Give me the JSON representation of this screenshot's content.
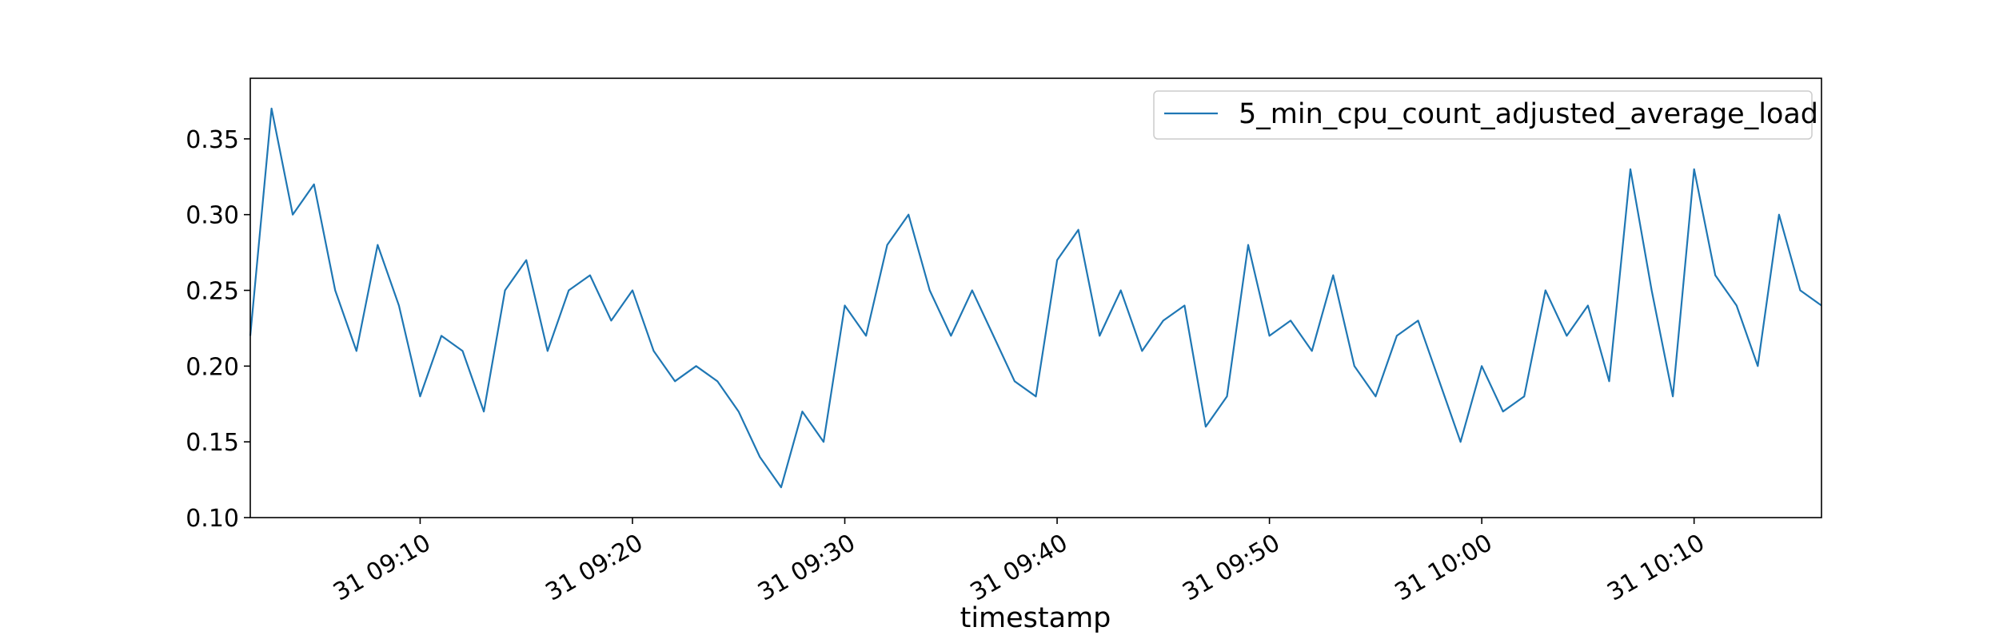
{
  "chart_data": {
    "type": "line",
    "title": "",
    "xlabel": "timestamp",
    "ylabel": "",
    "grid": false,
    "legend_position": "top-right",
    "series_color": "#1f77b4",
    "xlim": [
      "31 09:02",
      "31 10:16"
    ],
    "ylim": [
      0.1,
      0.39
    ],
    "yticks": [
      0.1,
      0.15,
      0.2,
      0.25,
      0.3,
      0.35
    ],
    "ytick_labels": [
      "0.10",
      "0.15",
      "0.20",
      "0.25",
      "0.30",
      "0.35"
    ],
    "xticks": [
      "31 09:10",
      "31 09:20",
      "31 09:30",
      "31 09:40",
      "31 09:50",
      "31 10:00",
      "31 10:10"
    ],
    "xtick_labels": [
      "31 09:10",
      "31 09:20",
      "31 09:30",
      "31 09:40",
      "31 09:50",
      "31 10:00",
      "31 10:10"
    ],
    "series": [
      {
        "name": "5_min_cpu_count_adjusted_average_load",
        "x": [
          "31 09:02",
          "31 09:03",
          "31 09:04",
          "31 09:05",
          "31 09:06",
          "31 09:07",
          "31 09:08",
          "31 09:09",
          "31 09:10",
          "31 09:11",
          "31 09:12",
          "31 09:13",
          "31 09:14",
          "31 09:15",
          "31 09:16",
          "31 09:17",
          "31 09:18",
          "31 09:19",
          "31 09:20",
          "31 09:21",
          "31 09:22",
          "31 09:23",
          "31 09:24",
          "31 09:25",
          "31 09:26",
          "31 09:27",
          "31 09:28",
          "31 09:29",
          "31 09:30",
          "31 09:31",
          "31 09:32",
          "31 09:33",
          "31 09:34",
          "31 09:35",
          "31 09:36",
          "31 09:37",
          "31 09:38",
          "31 09:39",
          "31 09:40",
          "31 09:41",
          "31 09:42",
          "31 09:43",
          "31 09:44",
          "31 09:45",
          "31 09:46",
          "31 09:47",
          "31 09:48",
          "31 09:49",
          "31 09:50",
          "31 09:51",
          "31 09:52",
          "31 09:53",
          "31 09:54",
          "31 09:55",
          "31 09:56",
          "31 09:57",
          "31 09:58",
          "31 09:59",
          "31 10:00",
          "31 10:01",
          "31 10:02",
          "31 10:03",
          "31 10:04",
          "31 10:05",
          "31 10:06",
          "31 10:07",
          "31 10:08",
          "31 10:09",
          "31 10:10",
          "31 10:11",
          "31 10:12",
          "31 10:13",
          "31 10:14",
          "31 10:15",
          "31 10:16"
        ],
        "values": [
          0.22,
          0.37,
          0.3,
          0.32,
          0.25,
          0.21,
          0.28,
          0.24,
          0.18,
          0.22,
          0.21,
          0.17,
          0.25,
          0.27,
          0.21,
          0.25,
          0.26,
          0.23,
          0.25,
          0.21,
          0.19,
          0.2,
          0.19,
          0.17,
          0.14,
          0.12,
          0.17,
          0.15,
          0.24,
          0.22,
          0.28,
          0.3,
          0.25,
          0.22,
          0.25,
          0.22,
          0.19,
          0.18,
          0.27,
          0.29,
          0.22,
          0.25,
          0.21,
          0.23,
          0.24,
          0.16,
          0.18,
          0.28,
          0.22,
          0.23,
          0.21,
          0.26,
          0.2,
          0.18,
          0.22,
          0.23,
          0.19,
          0.15,
          0.2,
          0.17,
          0.18,
          0.25,
          0.22,
          0.24,
          0.19,
          0.33,
          0.25,
          0.18,
          0.33,
          0.26,
          0.24,
          0.2,
          0.3,
          0.25,
          0.24
        ]
      }
    ]
  }
}
